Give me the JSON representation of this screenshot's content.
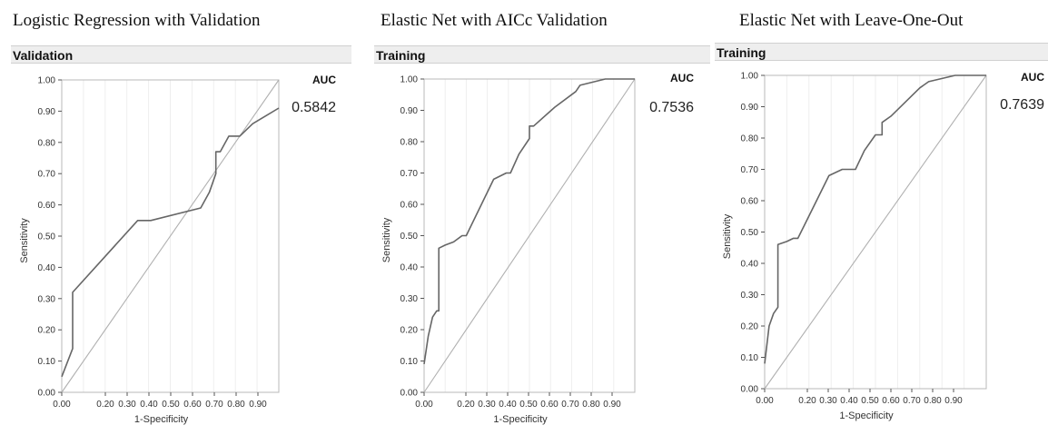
{
  "chart_data": [
    {
      "type": "line",
      "title": "Logistic Regression with Validation",
      "header": "Validation",
      "xlabel": "1-Specificity",
      "ylabel": "Sensitivity",
      "xlim": [
        0,
        1
      ],
      "ylim": [
        0,
        1
      ],
      "x_ticks": [
        "0.00",
        "0.20",
        "0.30",
        "0.40",
        "0.50",
        "0.60",
        "0.70",
        "0.80",
        "0.90"
      ],
      "y_ticks": [
        "0.00",
        "0.10",
        "0.20",
        "0.30",
        "0.40",
        "0.50",
        "0.60",
        "0.70",
        "0.80",
        "0.90",
        "1.00"
      ],
      "auc_label": "AUC",
      "auc_value": "0.5842",
      "reference_line": [
        [
          0,
          0
        ],
        [
          1,
          1
        ]
      ],
      "series": [
        {
          "x": [
            0,
            0,
            0.05,
            0.05,
            0.35,
            0.41,
            0.64,
            0.68,
            0.71,
            0.71,
            0.73,
            0.77,
            0.82,
            0.88,
            1.0
          ],
          "y": [
            0.05,
            0.05,
            0.14,
            0.32,
            0.55,
            0.55,
            0.59,
            0.64,
            0.7,
            0.77,
            0.77,
            0.82,
            0.82,
            0.86,
            0.91
          ]
        }
      ]
    },
    {
      "type": "line",
      "title": "Elastic Net with AICc Validation",
      "header": "Training",
      "xlabel": "1-Specificity",
      "ylabel": "Sensitivity",
      "xlim": [
        0,
        1
      ],
      "ylim": [
        0,
        1
      ],
      "x_ticks": [
        "0.00",
        "0.20",
        "0.30",
        "0.40",
        "0.50",
        "0.60",
        "0.70",
        "0.80",
        "0.90"
      ],
      "y_ticks": [
        "0.00",
        "0.10",
        "0.20",
        "0.30",
        "0.40",
        "0.50",
        "0.60",
        "0.70",
        "0.80",
        "0.90",
        "1.00"
      ],
      "auc_label": "AUC",
      "auc_value": "0.7536",
      "reference_line": [
        [
          0,
          0
        ],
        [
          1,
          1
        ]
      ],
      "series": [
        {
          "x": [
            0,
            0.02,
            0.04,
            0.06,
            0.07,
            0.07,
            0.1,
            0.14,
            0.18,
            0.2,
            0.33,
            0.39,
            0.41,
            0.45,
            0.5,
            0.5,
            0.52,
            0.62,
            0.72,
            0.74,
            0.86,
            1.0
          ],
          "y": [
            0.09,
            0.18,
            0.24,
            0.26,
            0.26,
            0.46,
            0.47,
            0.48,
            0.5,
            0.5,
            0.68,
            0.7,
            0.7,
            0.76,
            0.81,
            0.85,
            0.85,
            0.91,
            0.96,
            0.98,
            1.0,
            1.0
          ]
        }
      ]
    },
    {
      "type": "line",
      "title": "Elastic Net with Leave-One-Out",
      "header": "Training",
      "xlabel": "1-Specificity",
      "ylabel": "Sensitivity",
      "xlim": [
        0,
        1
      ],
      "ylim": [
        0,
        1
      ],
      "x_ticks": [
        "0.00",
        "0.20",
        "0.30",
        "0.40",
        "0.50",
        "0.60",
        "0.70",
        "0.80",
        "0.90"
      ],
      "y_ticks": [
        "0.00",
        "0.10",
        "0.20",
        "0.30",
        "0.40",
        "0.50",
        "0.60",
        "0.70",
        "0.80",
        "0.90",
        "1.00"
      ],
      "auc_label": "AUC",
      "auc_value": "0.7639",
      "reference_line": [
        [
          0,
          0
        ],
        [
          1,
          1
        ]
      ],
      "series": [
        {
          "x": [
            0,
            0.02,
            0.04,
            0.06,
            0.06,
            0.1,
            0.13,
            0.15,
            0.29,
            0.35,
            0.39,
            0.41,
            0.45,
            0.5,
            0.53,
            0.53,
            0.57,
            0.7,
            0.74,
            0.86,
            1.0
          ],
          "y": [
            0.08,
            0.2,
            0.24,
            0.26,
            0.46,
            0.47,
            0.48,
            0.48,
            0.68,
            0.7,
            0.7,
            0.7,
            0.76,
            0.81,
            0.81,
            0.85,
            0.87,
            0.96,
            0.98,
            1.0,
            1.0
          ]
        }
      ]
    }
  ]
}
